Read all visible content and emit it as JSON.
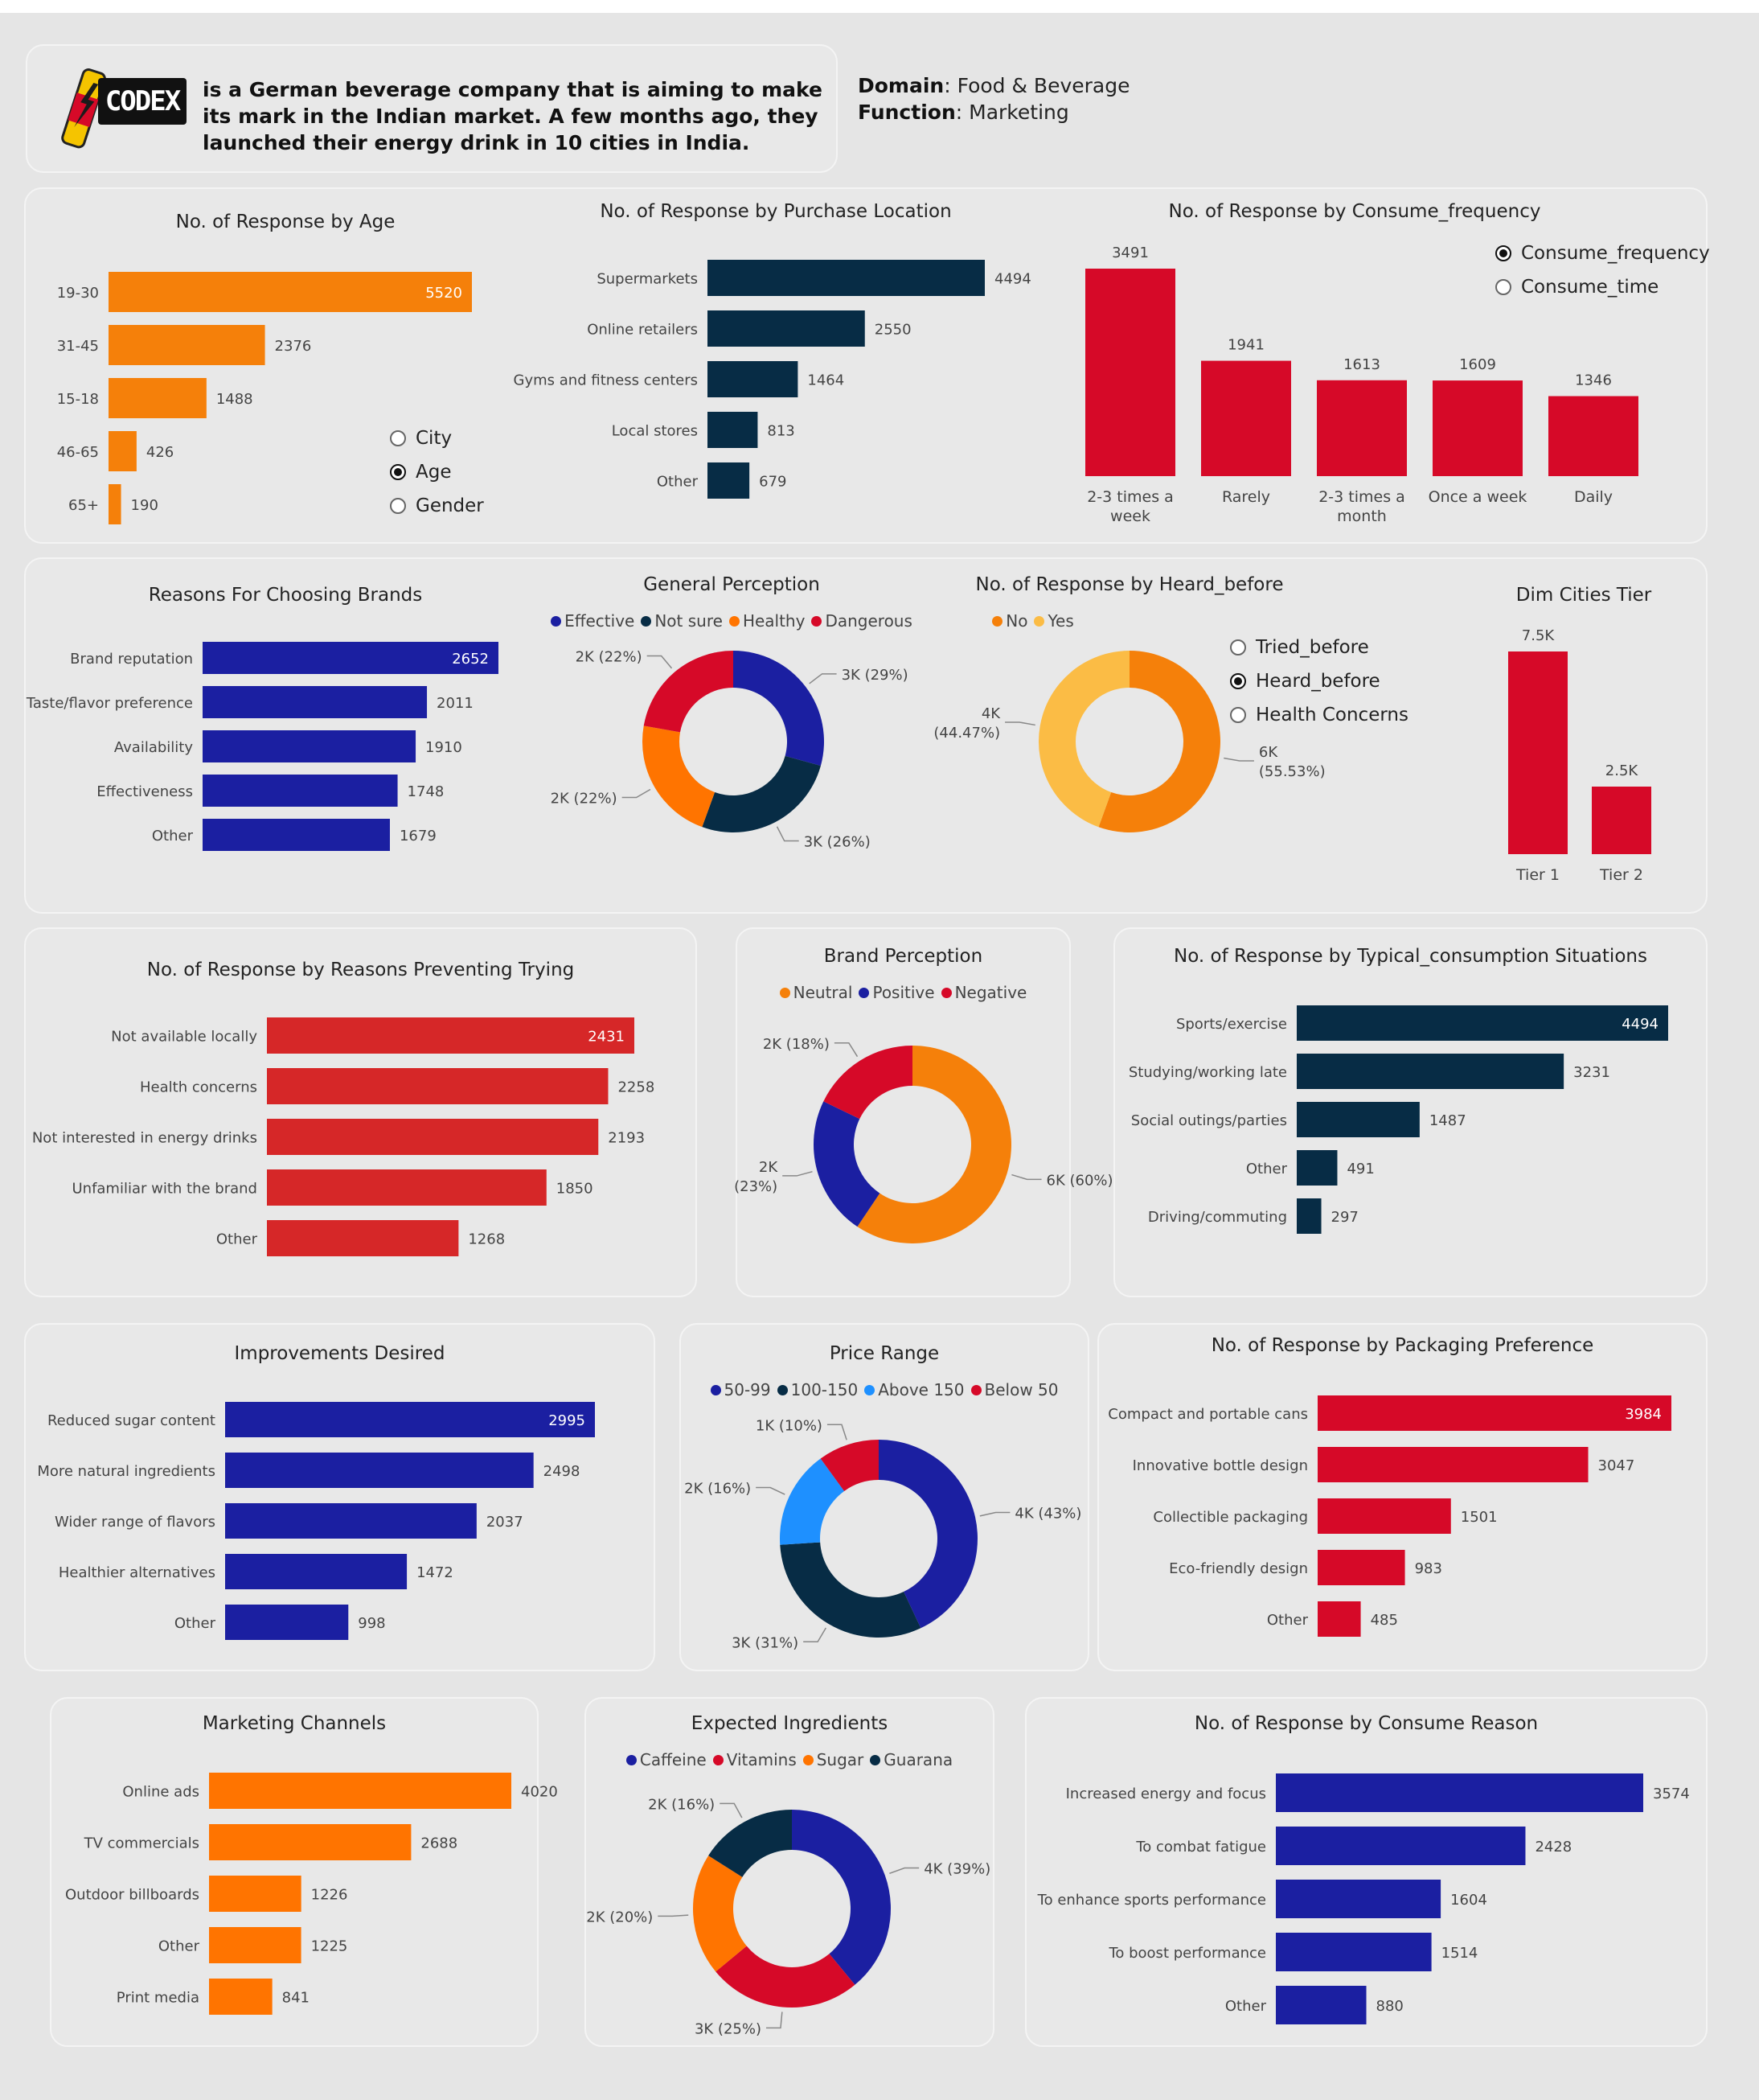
{
  "header": {
    "logo_text": "CODEX",
    "description": "is a German beverage company that is aiming to make its mark in the Indian market. A few months ago, they launched their energy drink in 10 cities in India.",
    "domain_label": "Domain",
    "domain_value": "Food & Beverage",
    "function_label": "Function",
    "function_value": "Marketing"
  },
  "colors": {
    "orange": "#f5800a",
    "navy": "#072c45",
    "red": "#d60928",
    "blue": "#1b1fa1",
    "brightred": "#d62728",
    "amber": "#fbbc45",
    "orange2": "#ff7400",
    "lightblue": "#1e90ff"
  },
  "age": {
    "radios": [
      {
        "label": "City",
        "selected": false
      },
      {
        "label": "Age",
        "selected": true
      },
      {
        "label": "Gender",
        "selected": false
      }
    ],
    "chart": {
      "type": "bar",
      "title": "No. of Response by Age",
      "categories": [
        "19-30",
        "31-45",
        "15-18",
        "46-65",
        "65+"
      ],
      "values": [
        5520,
        2376,
        1488,
        426,
        190
      ]
    }
  },
  "purchase": {
    "chart": {
      "type": "bar",
      "title": "No. of Response by Purchase Location",
      "categories": [
        "Supermarkets",
        "Online retailers",
        "Gyms and fitness centers",
        "Local stores",
        "Other"
      ],
      "values": [
        4494,
        2550,
        1464,
        813,
        679
      ]
    }
  },
  "frequency": {
    "radios": [
      {
        "label": "Consume_frequency",
        "selected": true
      },
      {
        "label": "Consume_time",
        "selected": false
      }
    ],
    "chart": {
      "type": "bar",
      "title": "No. of Response by Consume_frequency",
      "categories": [
        "2-3 times a week",
        "Rarely",
        "2-3 times a month",
        "Once a week",
        "Daily"
      ],
      "values": [
        3491,
        1941,
        1613,
        1609,
        1346
      ]
    }
  },
  "reasons": {
    "chart": {
      "type": "bar",
      "title": "Reasons For Choosing Brands",
      "categories": [
        "Brand reputation",
        "Taste/flavor preference",
        "Availability",
        "Effectiveness",
        "Other"
      ],
      "values": [
        2652,
        2011,
        1910,
        1748,
        1679
      ]
    }
  },
  "perception": {
    "chart": {
      "type": "pie",
      "title": "General Perception",
      "series": [
        {
          "name": "Effective",
          "value": 29,
          "label": "3K (29%)"
        },
        {
          "name": "Not sure",
          "value": 26,
          "label": "3K (26%)"
        },
        {
          "name": "Healthy",
          "value": 22,
          "label": "2K (22%)"
        },
        {
          "name": "Dangerous",
          "value": 22,
          "label": "2K (22%)"
        }
      ]
    }
  },
  "heard": {
    "radios": [
      {
        "label": "Tried_before",
        "selected": false
      },
      {
        "label": "Heard_before",
        "selected": true
      },
      {
        "label": "Health Concerns",
        "selected": false
      }
    ],
    "chart": {
      "type": "pie",
      "title": "No. of Response by Heard_before",
      "series": [
        {
          "name": "No",
          "value": 55.53,
          "label": "6K (55.53%)"
        },
        {
          "name": "Yes",
          "value": 44.47,
          "label": "4K (44.47%)"
        }
      ]
    }
  },
  "tier": {
    "chart": {
      "type": "bar",
      "title": "Dim Cities Tier",
      "categories": [
        "Tier 1",
        "Tier 2"
      ],
      "values": [
        7500,
        2500
      ],
      "labels": [
        "7.5K",
        "2.5K"
      ]
    }
  },
  "preventing": {
    "chart": {
      "type": "bar",
      "title": "No. of Response by Reasons Preventing Trying",
      "categories": [
        "Not available locally",
        "Health concerns",
        "Not interested in energy drinks",
        "Unfamiliar with the brand",
        "Other"
      ],
      "values": [
        2431,
        2258,
        2193,
        1850,
        1268
      ]
    }
  },
  "brandperc": {
    "chart": {
      "type": "pie",
      "title": "Brand Perception",
      "series": [
        {
          "name": "Neutral",
          "value": 60,
          "label": "6K (60%)"
        },
        {
          "name": "Positive",
          "value": 23,
          "label": "2K (23%)"
        },
        {
          "name": "Negative",
          "value": 18,
          "label": "2K (18%)"
        }
      ]
    }
  },
  "situations": {
    "chart": {
      "type": "bar",
      "title": "No. of Response by Typical_consumption Situations",
      "categories": [
        "Sports/exercise",
        "Studying/working late",
        "Social outings/parties",
        "Other",
        "Driving/commuting"
      ],
      "values": [
        4494,
        3231,
        1487,
        491,
        297
      ]
    }
  },
  "improvements": {
    "chart": {
      "type": "bar",
      "title": "Improvements Desired",
      "categories": [
        "Reduced sugar content",
        "More natural ingredients",
        "Wider range of flavors",
        "Healthier alternatives",
        "Other"
      ],
      "values": [
        2995,
        2498,
        2037,
        1472,
        998
      ]
    }
  },
  "price": {
    "chart": {
      "type": "pie",
      "title": "Price Range",
      "series": [
        {
          "name": "50-99",
          "value": 43,
          "label": "4K (43%)"
        },
        {
          "name": "100-150",
          "value": 31,
          "label": "3K (31%)"
        },
        {
          "name": "Above 150",
          "value": 16,
          "label": "2K (16%)"
        },
        {
          "name": "Below 50",
          "value": 10,
          "label": "1K (10%)"
        }
      ]
    }
  },
  "packaging": {
    "chart": {
      "type": "bar",
      "title": "No. of Response by Packaging Preference",
      "categories": [
        "Compact and portable cans",
        "Innovative bottle design",
        "Collectible packaging",
        "Eco-friendly design",
        "Other"
      ],
      "values": [
        3984,
        3047,
        1501,
        983,
        485
      ]
    }
  },
  "marketing": {
    "chart": {
      "type": "bar",
      "title": "Marketing Channels",
      "categories": [
        "Online ads",
        "TV commercials",
        "Outdoor billboards",
        "Other",
        "Print media"
      ],
      "values": [
        4020,
        2688,
        1226,
        1225,
        841
      ]
    }
  },
  "ingredients": {
    "chart": {
      "type": "pie",
      "title": "Expected Ingredients",
      "series": [
        {
          "name": "Caffeine",
          "value": 39,
          "label": "4K (39%)"
        },
        {
          "name": "Vitamins",
          "value": 25,
          "label": "3K (25%)"
        },
        {
          "name": "Sugar",
          "value": 20,
          "label": "2K (20%)"
        },
        {
          "name": "Guarana",
          "value": 16,
          "label": "2K (16%)"
        }
      ]
    }
  },
  "consumereason": {
    "chart": {
      "type": "bar",
      "title": "No. of Response by Consume Reason",
      "categories": [
        "Increased energy and focus",
        "To combat fatigue",
        "To enhance sports performance",
        "To boost performance",
        "Other"
      ],
      "values": [
        3574,
        2428,
        1604,
        1514,
        880
      ]
    }
  }
}
